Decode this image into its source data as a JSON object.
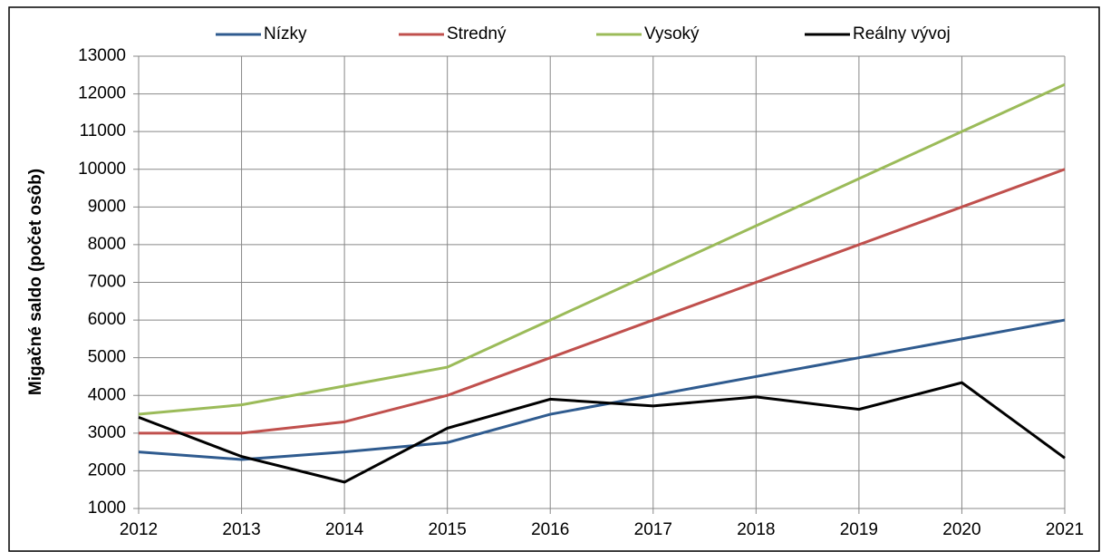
{
  "chart_data": {
    "type": "line",
    "y_label": "Migačné saldo (počet osôb)",
    "x": [
      2012,
      2013,
      2014,
      2015,
      2016,
      2017,
      2018,
      2019,
      2020,
      2021
    ],
    "xlim": [
      2012,
      2021
    ],
    "xticks": [
      2012,
      2013,
      2014,
      2015,
      2016,
      2017,
      2018,
      2019,
      2020,
      2021
    ],
    "ylim": [
      1000,
      13000
    ],
    "yticks": [
      1000,
      2000,
      3000,
      4000,
      5000,
      6000,
      7000,
      8000,
      9000,
      10000,
      11000,
      12000,
      13000
    ],
    "grid": true,
    "legend": "top",
    "series": [
      {
        "name": "Nízky",
        "color": "#2f5b8f",
        "values": [
          2500,
          2300,
          2500,
          2750,
          3500,
          4000,
          4500,
          5000,
          5500,
          6000
        ]
      },
      {
        "name": "Stredný",
        "color": "#c0504d",
        "values": [
          3000,
          3000,
          3300,
          4000,
          5000,
          6000,
          7000,
          8000,
          9000,
          10000
        ]
      },
      {
        "name": "Vysoký",
        "color": "#9bbb59",
        "values": [
          3500,
          3750,
          4250,
          4750,
          6000,
          7250,
          8500,
          9750,
          11000,
          12250
        ]
      },
      {
        "name": "Reálny vývoj",
        "color": "#000000",
        "values": [
          3420,
          2380,
          1700,
          3130,
          3900,
          3720,
          3960,
          3630,
          4340,
          2340
        ]
      }
    ]
  }
}
